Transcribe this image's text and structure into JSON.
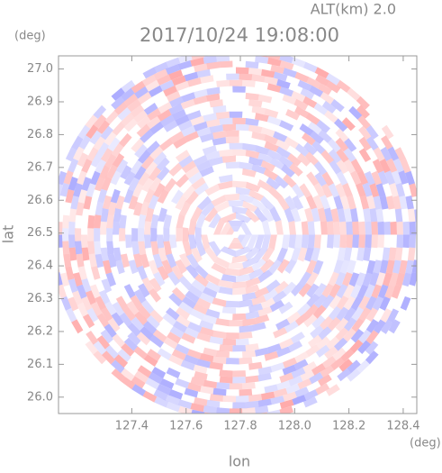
{
  "chart_data": {
    "type": "radar-ppi",
    "title": "2017/10/24 19:08:00",
    "subtitle": "ALT(km) 2.0",
    "x_label": "lon",
    "y_label": "lat",
    "x_unit": "(deg)",
    "y_unit": "(deg)",
    "xlim": [
      127.13,
      128.45
    ],
    "ylim": [
      25.95,
      27.04
    ],
    "xticks": [
      127.4,
      127.6,
      127.8,
      {
        "value": 128.0,
        "label": "128.0"
      },
      128.2,
      128.4
    ],
    "yticks": [
      {
        "value": 26.0,
        "label": "26.0"
      },
      26.1,
      26.2,
      26.3,
      26.4,
      26.5,
      26.6,
      26.7,
      26.8,
      26.9,
      {
        "value": 27.0,
        "label": "27.0"
      }
    ]
  }
}
